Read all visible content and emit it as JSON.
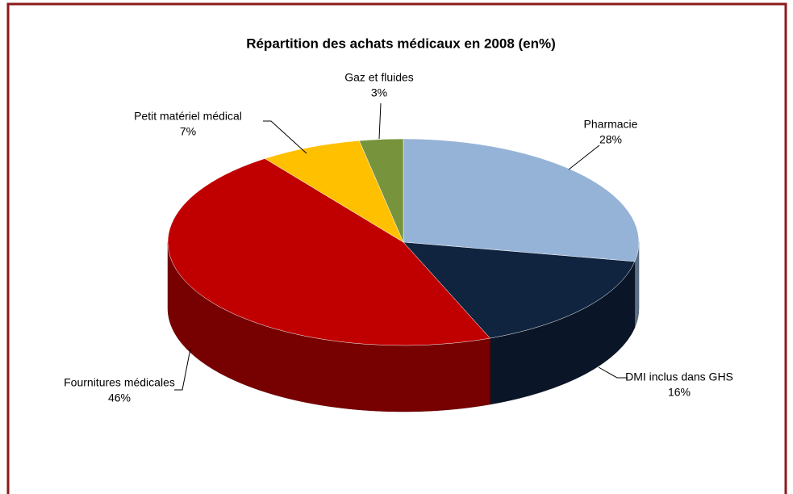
{
  "chart_data": {
    "type": "pie",
    "title": "Répartition des achats médicaux en 2008 (en%)",
    "categories": [
      "Pharmacie",
      "DMI inclus dans GHS",
      "Fournitures médicales",
      "Petit matériel médical",
      "Gaz et fluides"
    ],
    "values": [
      28,
      16,
      46,
      7,
      3
    ],
    "value_labels": [
      "28%",
      "16%",
      "46%",
      "7%",
      "3%"
    ],
    "colors": [
      "#95b3d7",
      "#10243f",
      "#c00000",
      "#ffc000",
      "#77933c"
    ]
  }
}
